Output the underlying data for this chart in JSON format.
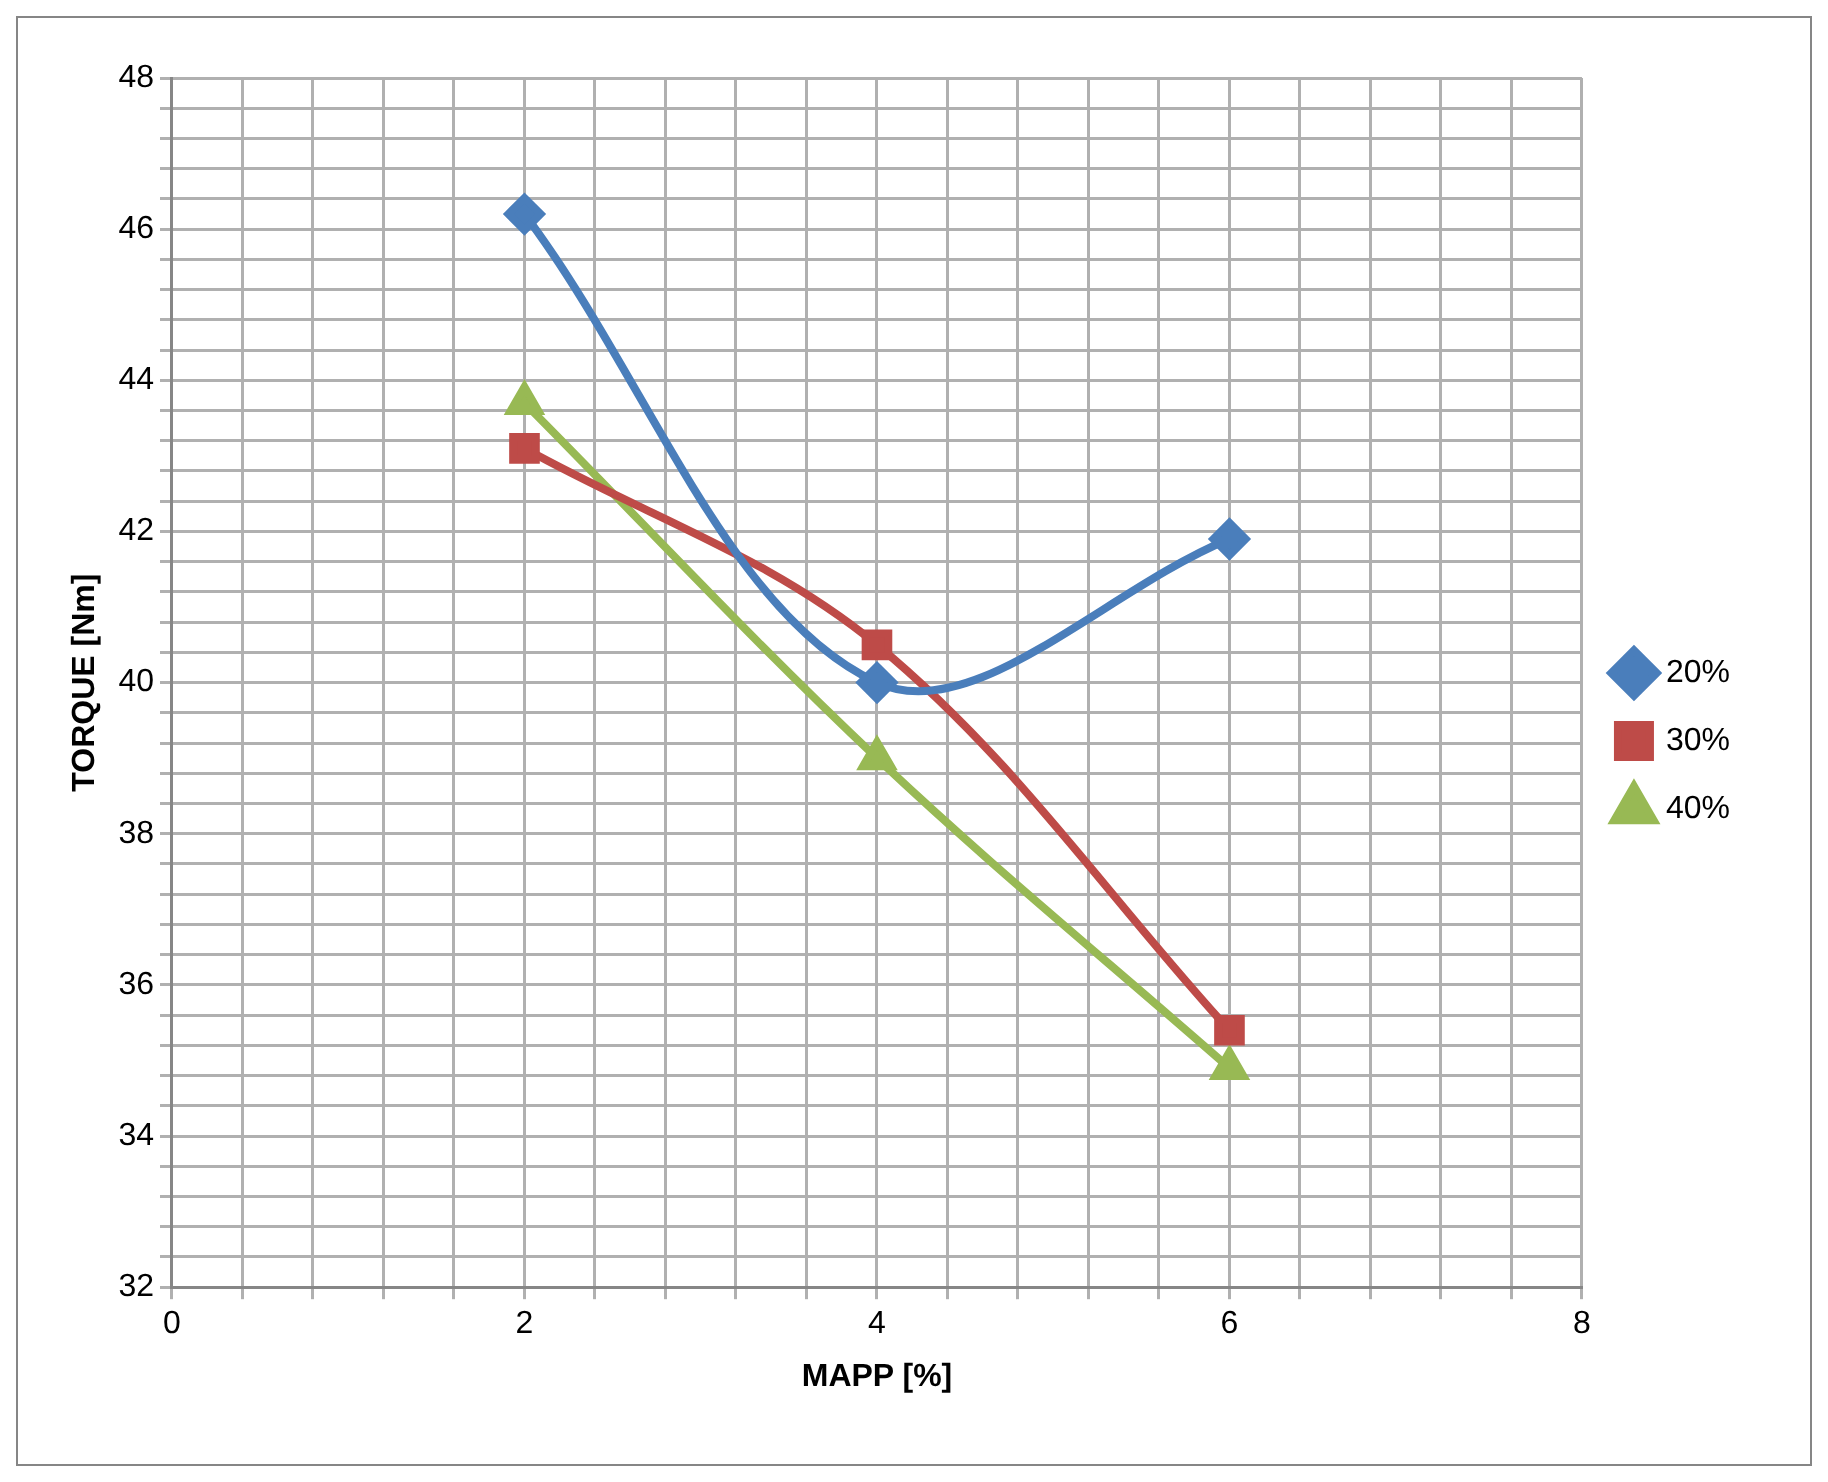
{
  "chart_data": {
    "type": "line",
    "xlabel": "MAPP [%]",
    "ylabel": "TORQUE [Nm]",
    "x": [
      2,
      4,
      6
    ],
    "series": [
      {
        "name": "20%",
        "color": "#4a7ebb",
        "values": [
          46.2,
          40.0,
          41.9
        ],
        "marker": "diamond"
      },
      {
        "name": "30%",
        "color": "#be4b48",
        "values": [
          43.1,
          40.5,
          35.4
        ],
        "marker": "square"
      },
      {
        "name": "40%",
        "color": "#98b954",
        "values": [
          43.7,
          39.0,
          34.9
        ],
        "marker": "triangle"
      }
    ],
    "xlim": [
      0,
      8
    ],
    "xticks": [
      0,
      {
        "value": 0.4,
        "label": null
      },
      {
        "value": 0.8,
        "label": null
      },
      {
        "value": 1.2,
        "label": null
      },
      {
        "value": 1.6,
        "label": null
      },
      2,
      {
        "value": 2.4,
        "label": null
      },
      {
        "value": 2.8,
        "label": null
      },
      {
        "value": 3.2,
        "label": null
      },
      {
        "value": 3.6,
        "label": null
      },
      4,
      {
        "value": 4.4,
        "label": null
      },
      {
        "value": 4.8,
        "label": null
      },
      {
        "value": 5.2,
        "label": null
      },
      {
        "value": 5.6,
        "label": null
      },
      6,
      {
        "value": 6.4,
        "label": null
      },
      {
        "value": 6.8,
        "label": null
      },
      {
        "value": 7.2,
        "label": null
      },
      {
        "value": 7.6,
        "label": null
      },
      8
    ],
    "ylim": [
      32,
      48
    ],
    "yticks": [
      32,
      {
        "value": 32.4,
        "label": null
      },
      {
        "value": 32.8,
        "label": null
      },
      {
        "value": 33.2,
        "label": null
      },
      {
        "value": 33.6,
        "label": null
      },
      34,
      {
        "value": 34.4,
        "label": null
      },
      {
        "value": 34.8,
        "label": null
      },
      {
        "value": 35.2,
        "label": null
      },
      {
        "value": 35.6,
        "label": null
      },
      36,
      {
        "value": 36.4,
        "label": null
      },
      {
        "value": 36.8,
        "label": null
      },
      {
        "value": 37.2,
        "label": null
      },
      {
        "value": 37.6,
        "label": null
      },
      38,
      {
        "value": 38.4,
        "label": null
      },
      {
        "value": 38.8,
        "label": null
      },
      {
        "value": 39.2,
        "label": null
      },
      {
        "value": 39.6,
        "label": null
      },
      40,
      {
        "value": 40.4,
        "label": null
      },
      {
        "value": 40.8,
        "label": null
      },
      {
        "value": 41.2,
        "label": null
      },
      {
        "value": 41.6,
        "label": null
      },
      42,
      {
        "value": 42.4,
        "label": null
      },
      {
        "value": 42.8,
        "label": null
      },
      {
        "value": 43.2,
        "label": null
      },
      {
        "value": 43.6,
        "label": null
      },
      44,
      {
        "value": 44.4,
        "label": null
      },
      {
        "value": 44.8,
        "label": null
      },
      {
        "value": 45.2,
        "label": null
      },
      {
        "value": 45.6,
        "label": null
      },
      46,
      {
        "value": 46.4,
        "label": null
      },
      {
        "value": 46.8,
        "label": null
      },
      {
        "value": 47.2,
        "label": null
      },
      {
        "value": 47.6,
        "label": null
      },
      48
    ],
    "grid": true,
    "legend": "right",
    "line_style": "solid"
  }
}
